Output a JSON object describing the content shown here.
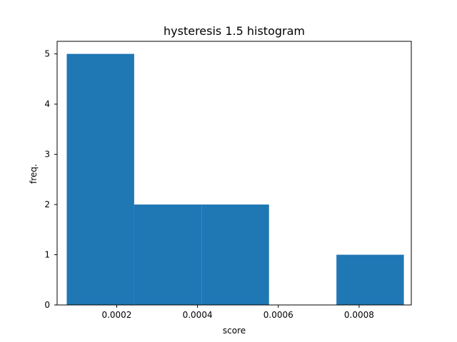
{
  "chart_data": {
    "type": "bar",
    "title": "hysteresis 1.5 histogram",
    "xlabel": "score",
    "ylabel": "freq.",
    "xlim": [
      5.25e-05,
      0.0009292
    ],
    "ylim": [
      0,
      5.25
    ],
    "x_ticks": [
      0.0002,
      0.0004,
      0.0006,
      0.0008
    ],
    "x_tick_labels": [
      "0.0002",
      "0.0004",
      "0.0006",
      "0.0008"
    ],
    "y_ticks": [
      0,
      1,
      2,
      3,
      4,
      5
    ],
    "y_tick_labels": [
      "0",
      "1",
      "2",
      "3",
      "4",
      "5"
    ],
    "bin_edges": [
      7.63e-05,
      0.0002432,
      0.0004101,
      0.000577,
      0.0007439,
      0.0009108
    ],
    "values": [
      5,
      2,
      2,
      0,
      1
    ],
    "bar_color": "#1f77b4",
    "grid": false,
    "legend": false
  }
}
